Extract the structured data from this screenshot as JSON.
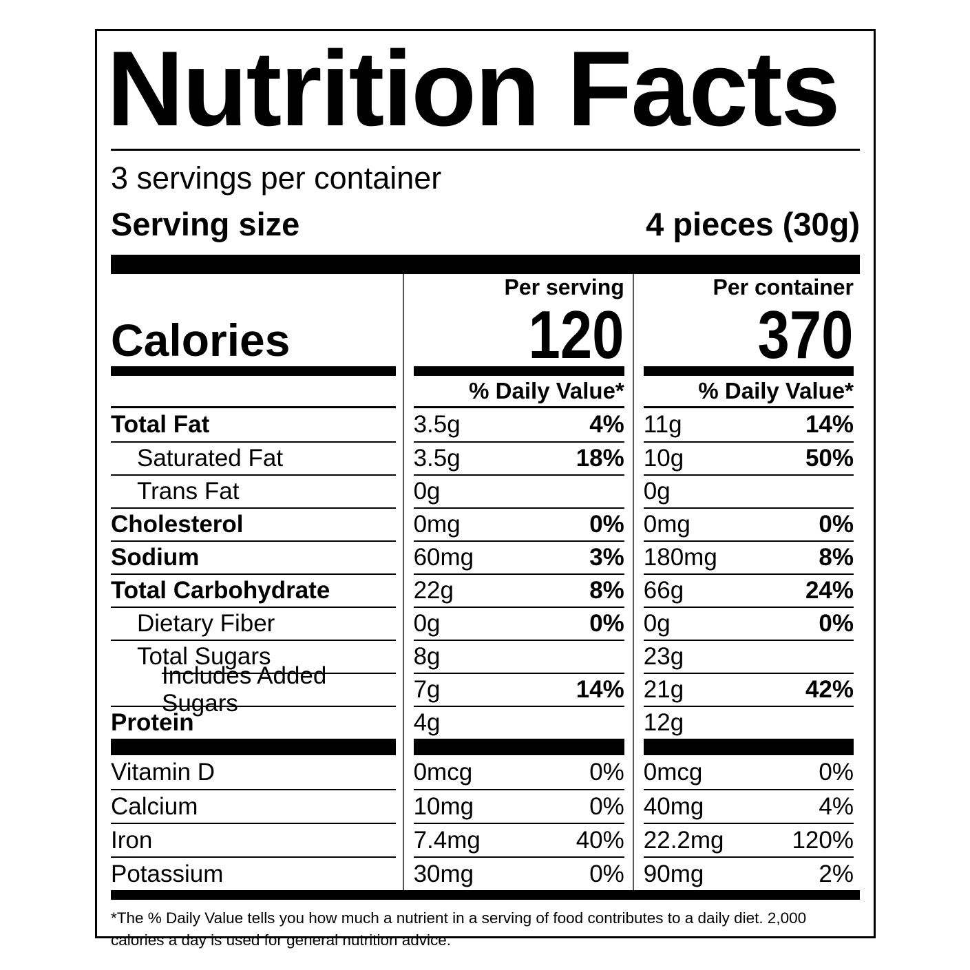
{
  "label": {
    "title": "Nutrition Facts",
    "servings_per_container": "3 servings per container",
    "serving_size_label": "Serving size",
    "serving_size_value": "4 pieces (30g)",
    "calories": {
      "label": "Calories",
      "per_serving_header": "Per serving",
      "per_container_header": "Per container",
      "per_serving": "120",
      "per_container": "370"
    },
    "daily_value_header": "% Daily Value*",
    "nutrients": [
      {
        "name": "Total Fat",
        "bold": true,
        "indent": 0,
        "serving_amount": "3.5g",
        "serving_dv": "4%",
        "container_amount": "11g",
        "container_dv": "14%"
      },
      {
        "name": "Saturated Fat",
        "bold": false,
        "indent": 1,
        "serving_amount": "3.5g",
        "serving_dv": "18%",
        "container_amount": "10g",
        "container_dv": "50%"
      },
      {
        "name": "Trans Fat",
        "bold": false,
        "indent": 1,
        "serving_amount": "0g",
        "serving_dv": "",
        "container_amount": "0g",
        "container_dv": ""
      },
      {
        "name": "Cholesterol",
        "bold": true,
        "indent": 0,
        "serving_amount": "0mg",
        "serving_dv": "0%",
        "container_amount": "0mg",
        "container_dv": "0%"
      },
      {
        "name": "Sodium",
        "bold": true,
        "indent": 0,
        "serving_amount": "60mg",
        "serving_dv": "3%",
        "container_amount": "180mg",
        "container_dv": "8%"
      },
      {
        "name": "Total Carbohydrate",
        "bold": true,
        "indent": 0,
        "serving_amount": "22g",
        "serving_dv": "8%",
        "container_amount": "66g",
        "container_dv": "24%"
      },
      {
        "name": "Dietary Fiber",
        "bold": false,
        "indent": 1,
        "serving_amount": "0g",
        "serving_dv": "0%",
        "container_amount": "0g",
        "container_dv": "0%"
      },
      {
        "name": "Total Sugars",
        "bold": false,
        "indent": 1,
        "serving_amount": "8g",
        "serving_dv": "",
        "container_amount": "23g",
        "container_dv": ""
      },
      {
        "name": "Includes Added Sugars",
        "bold": false,
        "indent": 2,
        "serving_amount": "7g",
        "serving_dv": "14%",
        "container_amount": "21g",
        "container_dv": "42%"
      },
      {
        "name": "Protein",
        "bold": true,
        "indent": 0,
        "serving_amount": "4g",
        "serving_dv": "",
        "container_amount": "12g",
        "container_dv": ""
      }
    ],
    "vitamins": [
      {
        "name": "Vitamin D",
        "serving_amount": "0mcg",
        "serving_dv": "0%",
        "container_amount": "0mcg",
        "container_dv": "0%"
      },
      {
        "name": "Calcium",
        "serving_amount": "10mg",
        "serving_dv": "0%",
        "container_amount": "40mg",
        "container_dv": "4%"
      },
      {
        "name": "Iron",
        "serving_amount": "7.4mg",
        "serving_dv": "40%",
        "container_amount": "22.2mg",
        "container_dv": "120%"
      },
      {
        "name": "Potassium",
        "serving_amount": "30mg",
        "serving_dv": "0%",
        "container_amount": "90mg",
        "container_dv": "2%"
      }
    ],
    "footnote": "*The % Daily Value tells you how much a nutrient in a serving of food contributes to a daily diet. 2,000 calories a day is used for general nutrition advice."
  }
}
